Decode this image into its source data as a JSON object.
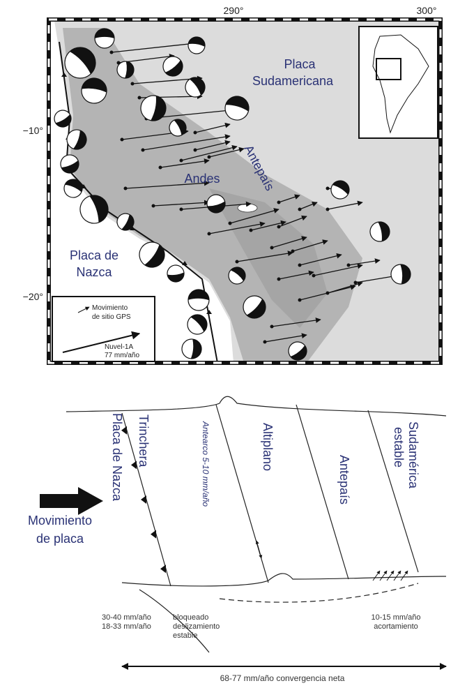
{
  "map": {
    "longitude_labels": [
      "290°",
      "300°"
    ],
    "latitude_labels": [
      "−10°",
      "−20°"
    ],
    "plate_south_america": [
      "Placa",
      "Sudamericana"
    ],
    "andes": "Andes",
    "foreland": "Antepaís",
    "plate_nazca": [
      "Placa de",
      "Nazca"
    ],
    "legend": {
      "gps": [
        "Movimiento",
        "de sitio GPS"
      ],
      "nuvel": [
        "Nuvel-1A",
        "77 mm/año"
      ]
    }
  },
  "diagram": {
    "plate_motion": [
      "Movimiento",
      "de placa"
    ],
    "nazca": "Placa de Nazca",
    "trench": "Trinchera",
    "forearc": "Antearco 5-10 mm/año",
    "altiplano": "Altiplano",
    "foreland": "Antepaís",
    "stable": [
      "Sudamérica",
      "estable"
    ],
    "rates_left": [
      "30-40 mm/año",
      "18-33 mm/año"
    ],
    "locked": "bloqueado",
    "sliding": [
      "deslizamiento",
      "estable"
    ],
    "rates_right": [
      "10-15 mm/año",
      "acortamiento"
    ],
    "convergence": "68-77 mm/año convergencia neta"
  }
}
